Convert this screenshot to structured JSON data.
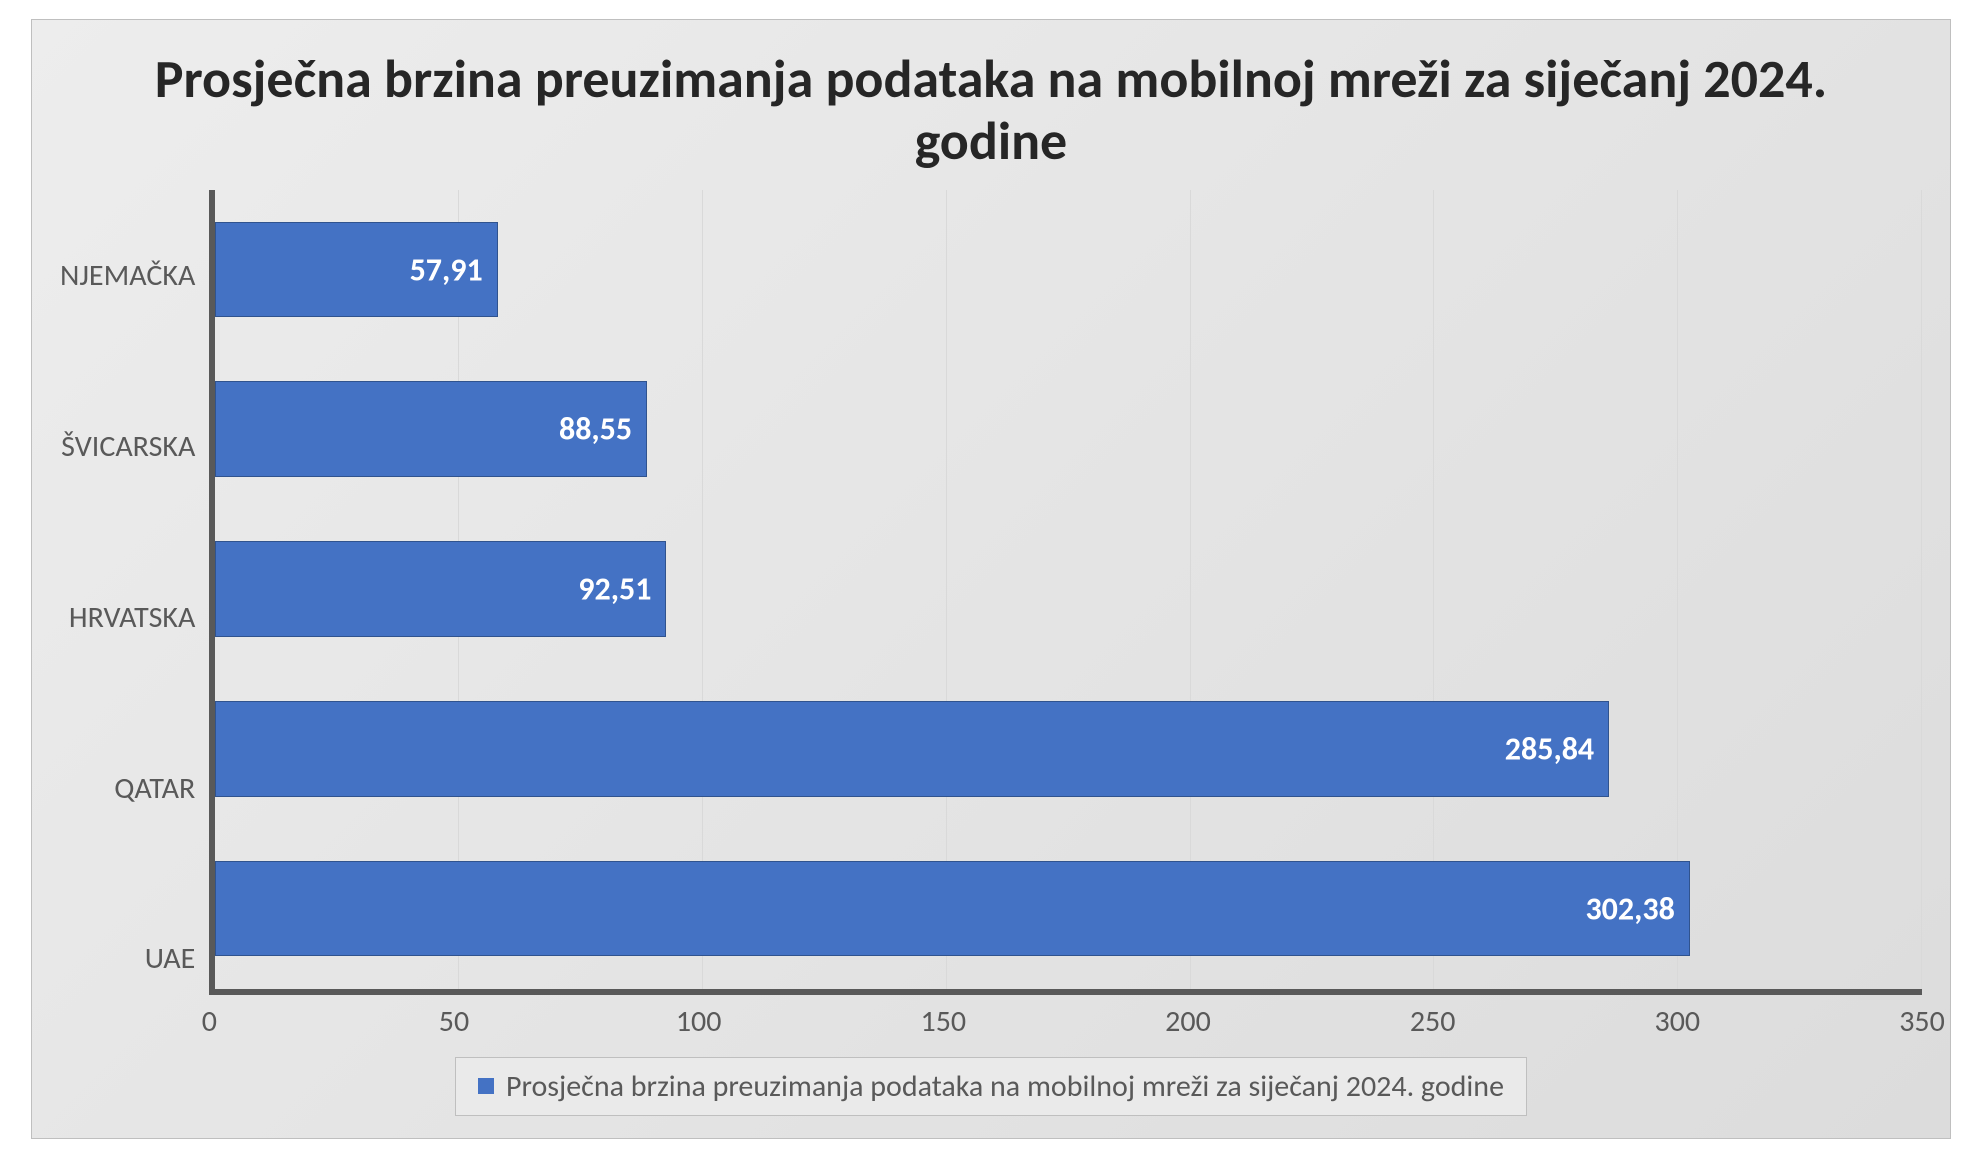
{
  "chart": {
    "type": "bar-horizontal",
    "title": "Prosječna brzina preuzimanja podataka na mobilnoj mreži za siječanj 2024. godine",
    "title_fontsize": 54,
    "title_color": "#262626",
    "categories": [
      "NJEMAČKA",
      "ŠVICARSKA",
      "HRVATSKA",
      "QATAR",
      "UAE"
    ],
    "values": [
      57.91,
      88.55,
      92.51,
      285.84,
      302.38
    ],
    "value_labels": [
      "57,91",
      "88,55",
      "92,51",
      "285,84",
      "302,38"
    ],
    "bar_color": "#4472c4",
    "bar_border_color": "#30538e",
    "data_label_color": "#ffffff",
    "data_label_fontsize": 32,
    "data_label_fontweight": "700",
    "x_axis": {
      "min": 0,
      "max": 350,
      "tick_step": 50,
      "ticks": [
        0,
        50,
        100,
        150,
        200,
        250,
        300,
        350
      ],
      "tick_fontsize": 30,
      "tick_color": "#595959"
    },
    "y_axis": {
      "tick_fontsize": 30,
      "tick_color": "#595959"
    },
    "grid_color": "#d9d9d9",
    "axis_line_color": "#595959",
    "background_gradient": {
      "from": "#ededed",
      "to": "#dcdcdc",
      "angle_deg": 135
    },
    "chart_border_color": "#bfbfbf",
    "legend": {
      "label": "Prosječna brzina preuzimanja podataka na mobilnoj mreži za siječanj 2024. godine",
      "swatch_color": "#4472c4",
      "fontsize": 30,
      "text_color": "#595959",
      "border_color": "#bfbfbf",
      "background": "#eaeaea"
    }
  }
}
